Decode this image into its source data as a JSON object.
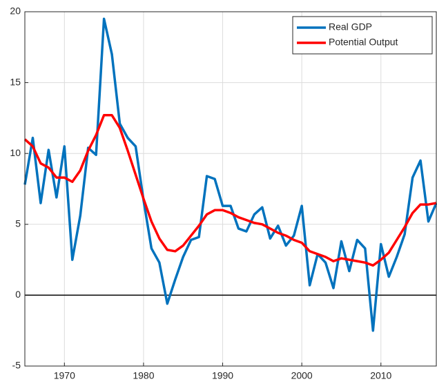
{
  "chart_data": {
    "type": "line",
    "x": [
      1965,
      1966,
      1967,
      1968,
      1969,
      1970,
      1971,
      1972,
      1973,
      1974,
      1975,
      1976,
      1977,
      1978,
      1979,
      1980,
      1981,
      1982,
      1983,
      1984,
      1985,
      1986,
      1987,
      1988,
      1989,
      1990,
      1991,
      1992,
      1993,
      1994,
      1995,
      1996,
      1997,
      1998,
      1999,
      2000,
      2001,
      2002,
      2003,
      2004,
      2005,
      2006,
      2007,
      2008,
      2009,
      2010,
      2011,
      2012,
      2013,
      2014,
      2015,
      2016,
      2017
    ],
    "series": [
      {
        "name": "Real GDP",
        "color": "#0072bd",
        "values": [
          7.8,
          11.1,
          6.5,
          10.25,
          6.9,
          10.5,
          2.5,
          5.6,
          10.4,
          9.9,
          19.5,
          17.0,
          12.1,
          11.1,
          10.5,
          6.7,
          3.3,
          2.3,
          -0.6,
          1.1,
          2.7,
          3.9,
          4.1,
          8.4,
          8.2,
          6.3,
          6.3,
          4.7,
          4.5,
          5.7,
          6.2,
          4.0,
          4.9,
          3.5,
          4.2,
          6.3,
          0.7,
          2.9,
          2.3,
          0.5,
          3.8,
          1.7,
          3.9,
          3.3,
          -2.5,
          3.6,
          1.3,
          2.7,
          4.3,
          8.3,
          9.5,
          5.2,
          6.5
        ]
      },
      {
        "name": "Potential Output",
        "color": "#ff0000",
        "values": [
          11.0,
          10.5,
          9.3,
          9.0,
          8.3,
          8.3,
          8.0,
          8.8,
          10.2,
          11.3,
          12.7,
          12.7,
          11.8,
          10.2,
          8.5,
          6.8,
          5.2,
          4.0,
          3.2,
          3.1,
          3.5,
          4.2,
          4.9,
          5.7,
          6.0,
          6.0,
          5.8,
          5.5,
          5.3,
          5.1,
          5.0,
          4.7,
          4.4,
          4.2,
          3.9,
          3.7,
          3.1,
          2.9,
          2.7,
          2.4,
          2.6,
          2.5,
          2.4,
          2.3,
          2.1,
          2.5,
          3.0,
          3.9,
          4.8,
          5.8,
          6.4,
          6.4,
          6.5
        ]
      }
    ],
    "xlim": [
      1965,
      2017
    ],
    "xticks": [
      1970,
      1980,
      1990,
      2000,
      2010
    ],
    "ylim": [
      -5,
      20
    ],
    "yticks": [
      -5,
      0,
      5,
      10,
      15,
      20
    ],
    "grid": true,
    "zero_line_color": "#000000",
    "legend": "upper-right"
  }
}
